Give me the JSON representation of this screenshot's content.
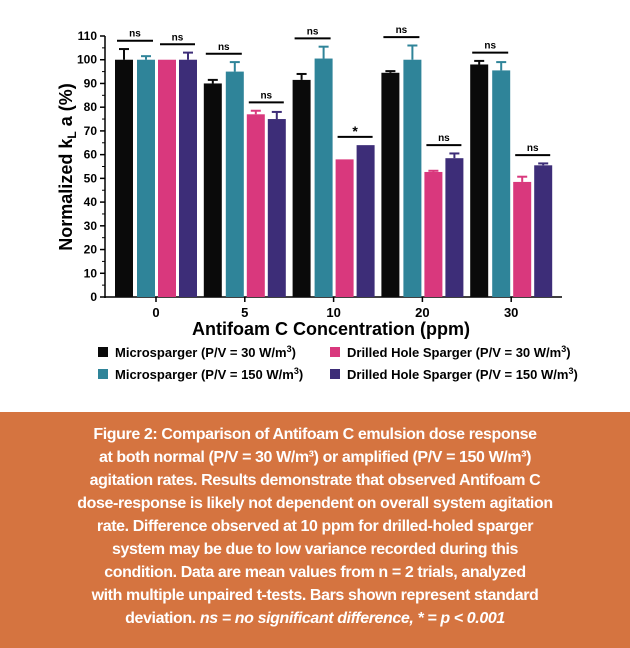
{
  "chart_data": {
    "type": "bar",
    "title": "",
    "xlabel": "Antifoam C Concentration (ppm)",
    "ylabel_main": "Normalized k",
    "ylabel_sub": "L",
    "ylabel_tail": " a (%)",
    "ylim": [
      0,
      110
    ],
    "yticks": [
      0,
      10,
      20,
      30,
      40,
      50,
      60,
      70,
      80,
      90,
      100,
      110
    ],
    "categories": [
      "0",
      "5",
      "10",
      "20",
      "30"
    ],
    "series": [
      {
        "name": "Microsparger (P/V = 30 W/m",
        "sup": "3",
        "close": ")",
        "color": "#0a0a0a",
        "values": [
          100,
          90,
          91.5,
          94.5,
          98
        ],
        "sd": [
          4.5,
          1.5,
          2.5,
          0.7,
          1.5
        ]
      },
      {
        "name": "Microsparger (P/V = 150 W/m",
        "sup": "3",
        "close": ")",
        "color": "#2f8499",
        "values": [
          100,
          95,
          100.5,
          100,
          95.5
        ],
        "sd": [
          1.5,
          4,
          5,
          6,
          3.5
        ]
      },
      {
        "name": "Drilled Hole Sparger (P/V = 30 W/m",
        "sup": "3",
        "close": ")",
        "color": "#d9387d",
        "values": [
          100,
          77,
          58,
          52.7,
          48.5
        ],
        "sd": [
          0,
          1.5,
          0,
          0.5,
          2.2
        ]
      },
      {
        "name": "Drilled Hole Sparger (P/V = 150 W/m",
        "sup": "3",
        "close": ")",
        "color": "#3d2d78",
        "values": [
          100,
          75,
          64,
          58.5,
          55.5
        ],
        "sd": [
          3,
          3,
          0,
          2,
          0.8
        ]
      }
    ],
    "significance": [
      {
        "category": "0",
        "pair": "microsparger",
        "label": "ns"
      },
      {
        "category": "0",
        "pair": "drilled",
        "label": "ns"
      },
      {
        "category": "5",
        "pair": "microsparger",
        "label": "ns"
      },
      {
        "category": "5",
        "pair": "drilled",
        "label": "ns"
      },
      {
        "category": "10",
        "pair": "microsparger",
        "label": "ns"
      },
      {
        "category": "10",
        "pair": "drilled",
        "label": "*"
      },
      {
        "category": "20",
        "pair": "microsparger",
        "label": "ns"
      },
      {
        "category": "20",
        "pair": "drilled",
        "label": "ns"
      },
      {
        "category": "30",
        "pair": "microsparger",
        "label": "ns"
      },
      {
        "category": "30",
        "pair": "drilled",
        "label": "ns"
      }
    ],
    "legend_position": "bottom",
    "grid": false
  },
  "caption": {
    "lines": [
      "Figure 2: Comparison of Antifoam C emulsion dose response",
      "at both normal (P/V = 30 W/m³) or amplified (P/V = 150 W/m³)",
      "agitation rates. Results demonstrate that observed Antifoam C",
      "dose-response is likely not dependent on overall system agitation",
      "rate. Difference observed at 10 ppm for drilled-holed sparger",
      "system may be due to low variance recorded during this",
      "condition. Data are mean values from n = 2 trials, analyzed",
      "with multiple unpaired t-tests. Bars shown represent standard"
    ],
    "last_line_plain": "deviation. ",
    "last_line_italic": "ns = no significant difference, * = p < 0.001"
  },
  "colors": {
    "caption_bg": "#d57440"
  }
}
